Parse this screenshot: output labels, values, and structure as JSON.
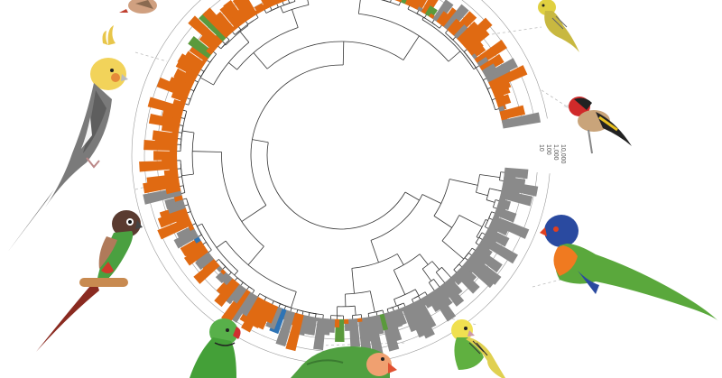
{
  "figure": {
    "scale": {
      "tick_labels": [
        "10,000",
        "1,000",
        "100",
        "10"
      ]
    },
    "colors": {
      "branch": "#333333",
      "ring": "#9a9a9a",
      "connector": "#b8b8b8",
      "orange": "#e06a12",
      "gray": "#8a8a8a",
      "green": "#5a9a3c",
      "blue": "#2f74b5",
      "yellow": "#e8a41a"
    },
    "bird_illustrations": [
      {
        "name": "cockatiel-illustration"
      },
      {
        "name": "conure-illustration"
      },
      {
        "name": "ringneck-parakeet-illustration"
      },
      {
        "name": "lovebird-illustration"
      },
      {
        "name": "budgerigar-illustration"
      },
      {
        "name": "rainbow-lorikeet-illustration"
      },
      {
        "name": "goldfinch-illustration"
      },
      {
        "name": "serin-illustration"
      },
      {
        "name": "finch-illustration"
      }
    ]
  }
}
